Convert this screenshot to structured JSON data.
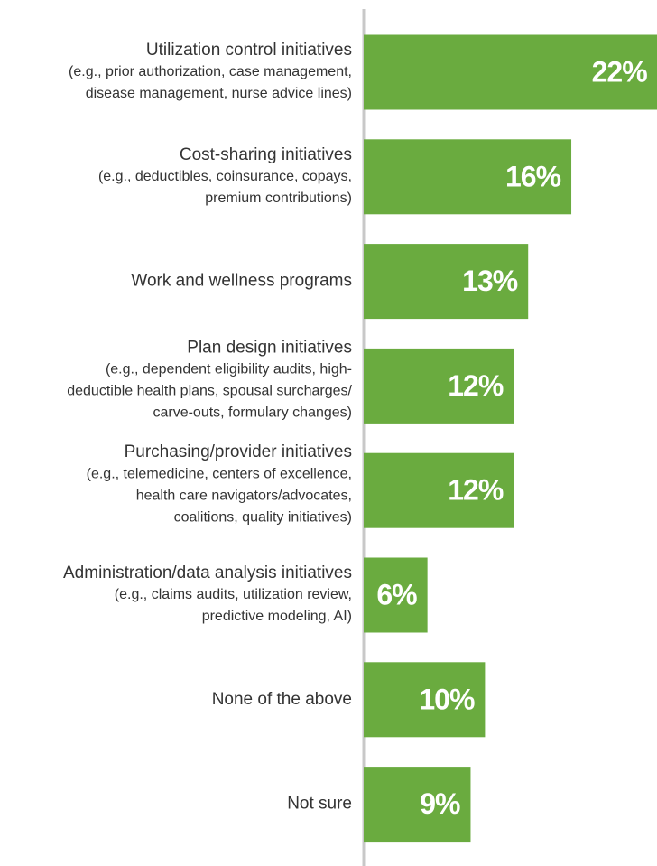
{
  "chart_data": {
    "type": "bar",
    "orientation": "horizontal",
    "color": "#6aab3f",
    "categories": [
      [
        "Utilization control initiatives",
        "(e.g., prior authorization, case management,",
        "disease management, nurse advice lines)"
      ],
      [
        "Cost-sharing initiatives",
        "(e.g., deductibles, coinsurance, copays,",
        "premium contributions)"
      ],
      [
        "Work and wellness programs"
      ],
      [
        "Plan design initiatives",
        "(e.g., dependent eligibility audits, high-",
        "deductible health plans, spousal surcharges/",
        "carve-outs, formulary changes)"
      ],
      [
        "Purchasing/provider initiatives",
        "(e.g., telemedicine, centers of excellence,",
        "health care navigators/advocates,",
        "coalitions, quality initiatives)"
      ],
      [
        "Administration/data analysis initiatives",
        "(e.g., claims audits, utilization review,",
        "predictive modeling, AI)"
      ],
      [
        "None of the above"
      ],
      [
        "Not sure"
      ]
    ],
    "values": [
      22,
      16,
      13,
      12,
      12,
      6,
      10,
      9
    ],
    "value_labels": [
      "22%",
      "16%",
      "13%",
      "12%",
      "12%",
      "6%",
      "10%",
      "9%"
    ]
  }
}
